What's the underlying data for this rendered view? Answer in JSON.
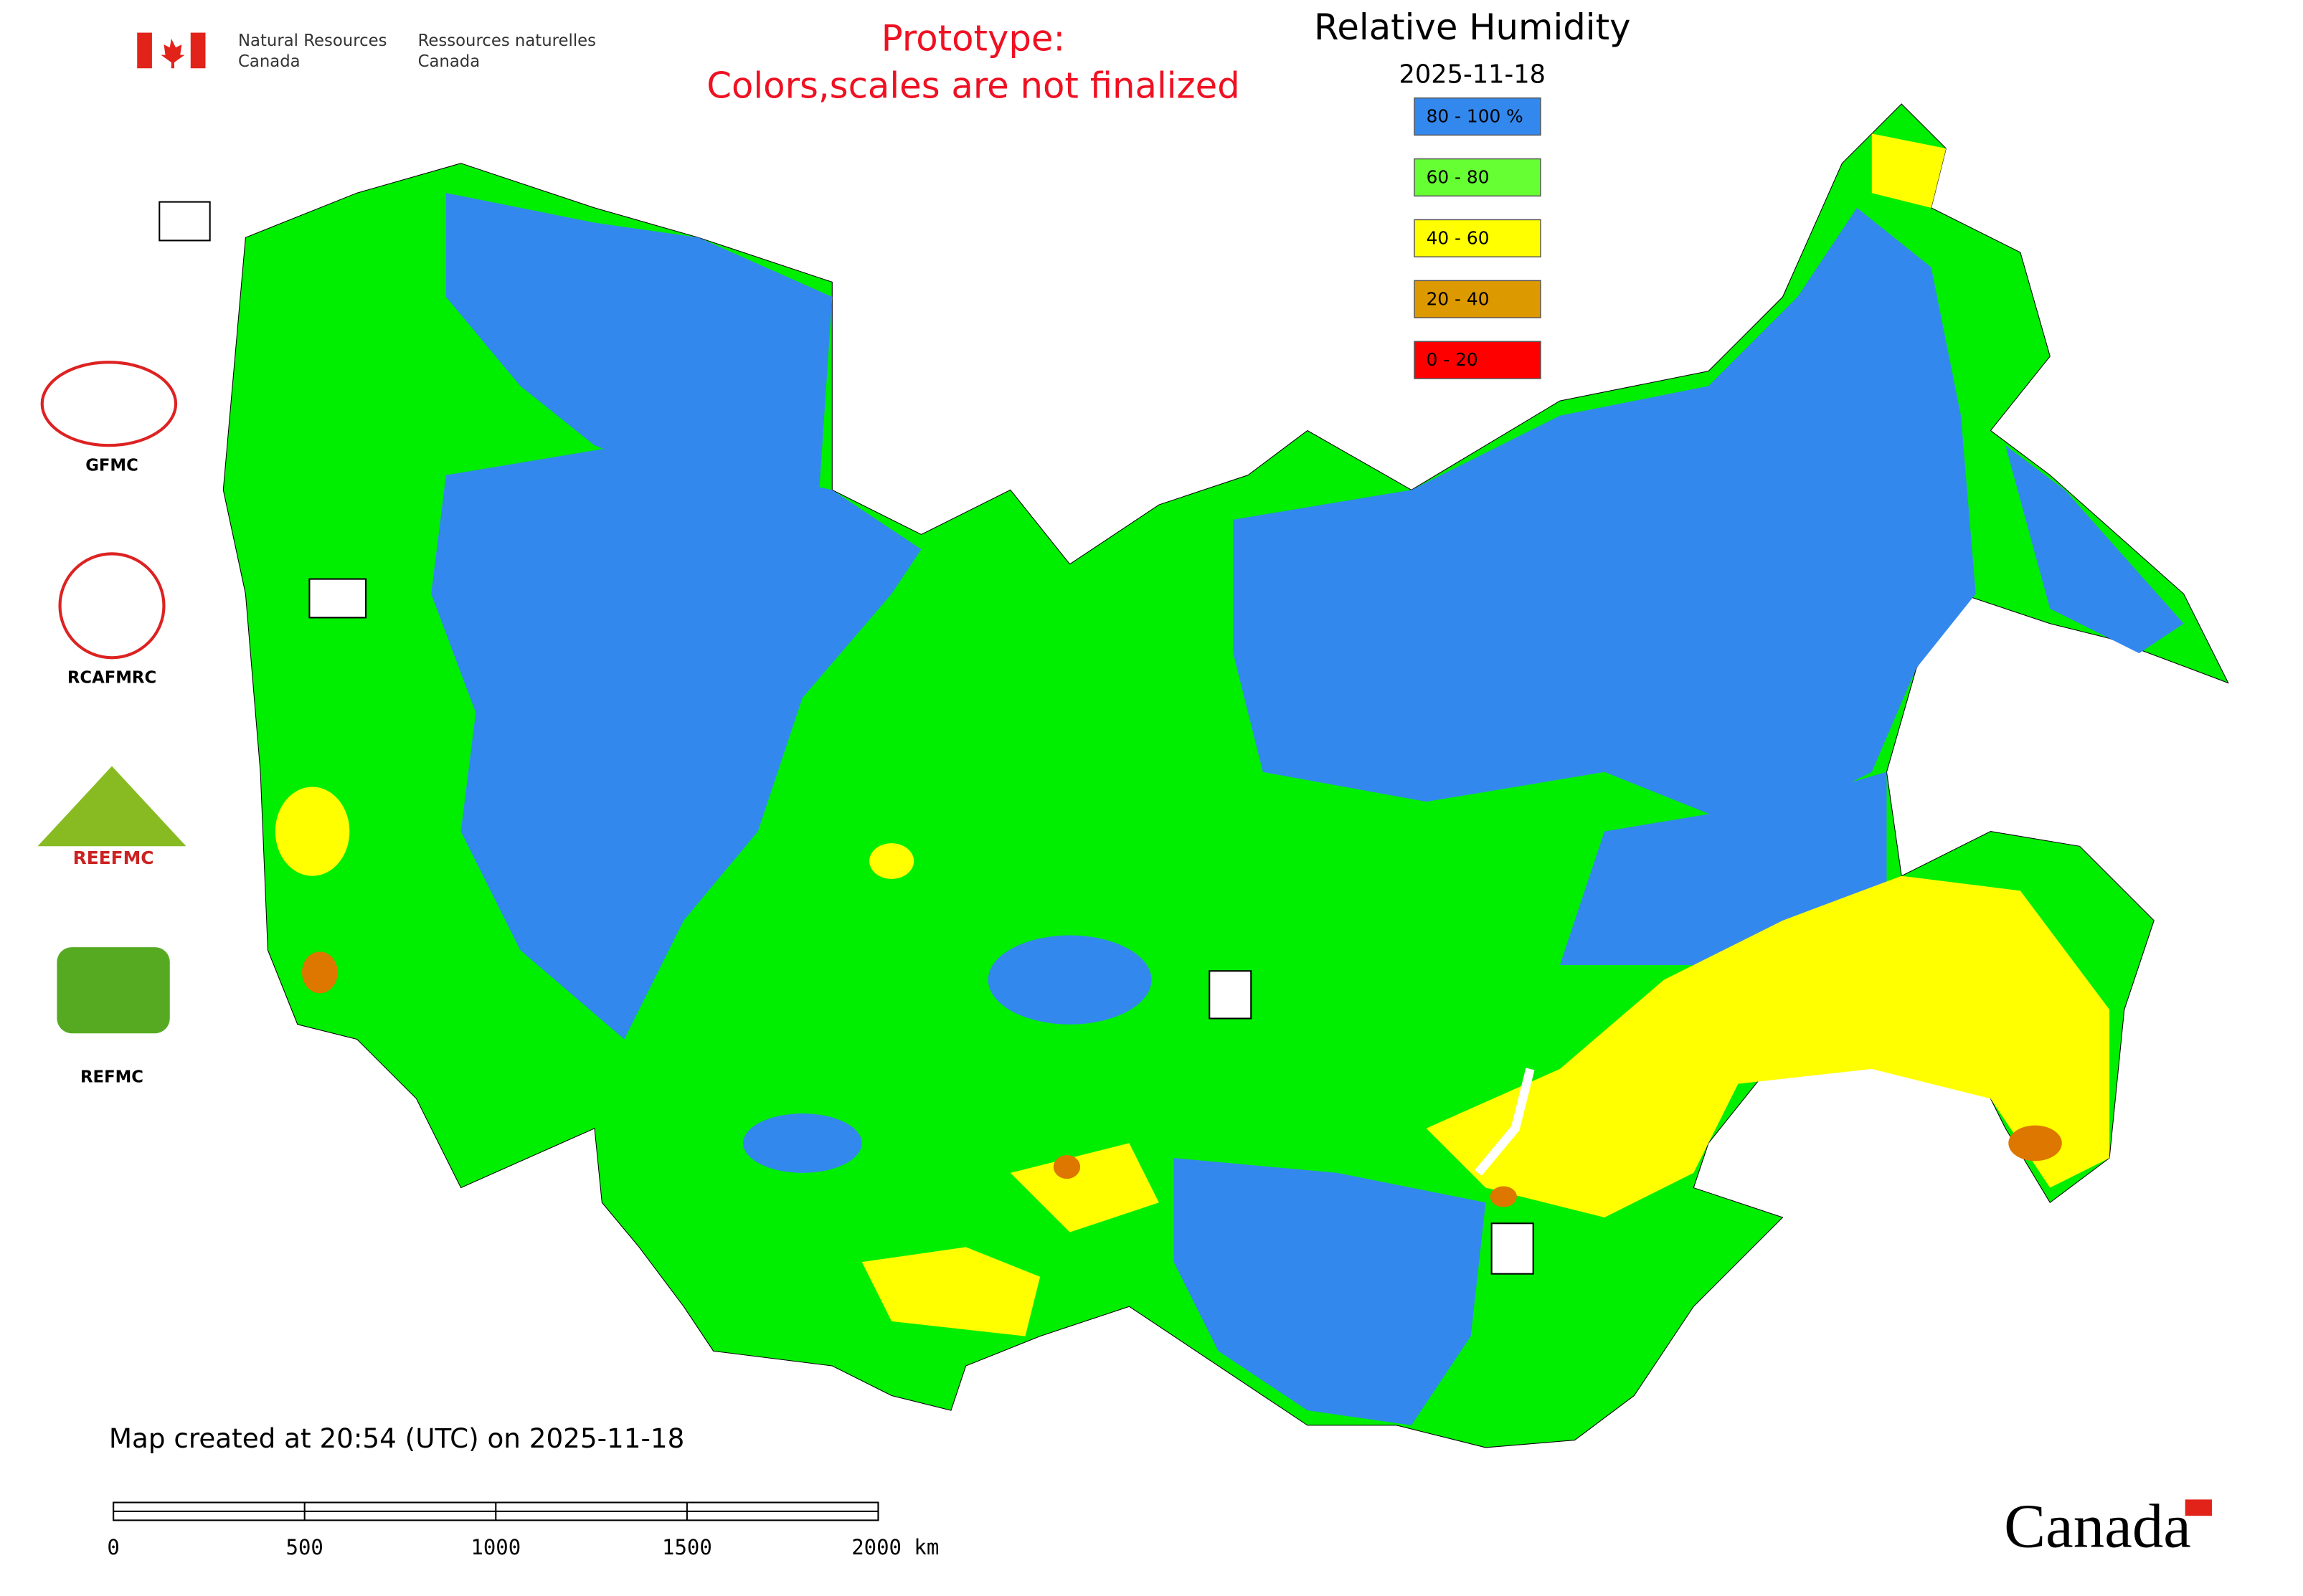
{
  "header": {
    "agency_en": [
      "Natural Resources",
      "Canada"
    ],
    "agency_fr": [
      "Ressources naturelles",
      "Canada"
    ],
    "notice": [
      "Prototype:",
      "Colors,scales are not finalized"
    ]
  },
  "legend": {
    "title": "Relative Humidity",
    "date": "2025-11-18",
    "items": [
      {
        "label": "80 - 100 %",
        "color": "#3388ee"
      },
      {
        "label": "60 - 80",
        "color": "#66ff33"
      },
      {
        "label": "40 - 60",
        "color": "#ffff00"
      },
      {
        "label": "20 - 40",
        "color": "#dd9900"
      },
      {
        "label": "0 - 20",
        "color": "#ff0000"
      }
    ]
  },
  "logos": [
    "GFMC",
    "RCAFMRC",
    "REEFMC",
    "REFMC"
  ],
  "footer": {
    "created": "Map created at 20:54 (UTC) on 2025-11-18",
    "wordmark": "Canada"
  },
  "scale_bar": {
    "labels": [
      "0",
      "500",
      "1000",
      "1500",
      "2000 km"
    ]
  }
}
